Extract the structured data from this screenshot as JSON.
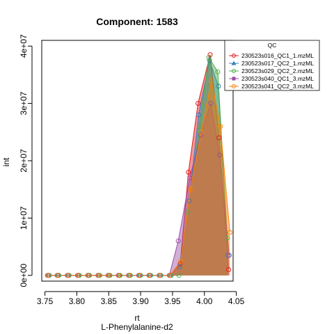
{
  "chart_data": {
    "type": "area",
    "title": "Component: 1583",
    "xlabel": "rt",
    "subtitle": "L-Phenylalanine-d2",
    "ylabel": "int",
    "xlim": [
      3.745,
      4.045
    ],
    "ylim": [
      -1000000,
      41000000
    ],
    "x_ticks": [
      3.75,
      3.8,
      3.85,
      3.9,
      3.95,
      4.0,
      4.05
    ],
    "x_tick_labels": [
      "3.75",
      "3.80",
      "3.85",
      "3.90",
      "3.95",
      "4.00",
      "4.05"
    ],
    "y_ticks": [
      0,
      10000000,
      20000000,
      30000000,
      40000000
    ],
    "y_tick_labels": [
      "0e+00",
      "1e+07",
      "2e+07",
      "3e+07",
      "4e+07"
    ],
    "legend": {
      "title": "QC",
      "placement": "top-right"
    },
    "series": [
      {
        "name": "230523s016_QC1_1.mzML",
        "color": "#E41A1C",
        "marker": "circle",
        "points": [
          [
            3.755,
            0
          ],
          [
            3.77,
            0
          ],
          [
            3.786,
            0
          ],
          [
            3.802,
            0
          ],
          [
            3.818,
            0
          ],
          [
            3.834,
            0
          ],
          [
            3.85,
            0
          ],
          [
            3.866,
            0
          ],
          [
            3.882,
            0
          ],
          [
            3.898,
            0
          ],
          [
            3.914,
            0
          ],
          [
            3.93,
            0
          ],
          [
            3.946,
            0
          ],
          [
            3.962,
            2000000
          ],
          [
            3.975,
            18000000
          ],
          [
            3.99,
            30000000
          ],
          [
            4.009,
            38500000
          ],
          [
            4.023,
            24000000
          ],
          [
            4.038,
            1000000
          ]
        ]
      },
      {
        "name": "230523s017_QC2_1.mzML",
        "color": "#377EB8",
        "marker": "triangle",
        "points": [
          [
            3.756,
            0
          ],
          [
            3.771,
            0
          ],
          [
            3.787,
            0
          ],
          [
            3.803,
            0
          ],
          [
            3.819,
            0
          ],
          [
            3.835,
            0
          ],
          [
            3.851,
            0
          ],
          [
            3.867,
            0
          ],
          [
            3.883,
            0
          ],
          [
            3.899,
            0
          ],
          [
            3.915,
            0
          ],
          [
            3.931,
            0
          ],
          [
            3.947,
            0
          ],
          [
            3.961,
            1500000
          ],
          [
            3.976,
            13000000
          ],
          [
            3.991,
            28000000
          ],
          [
            4.008,
            37500000
          ],
          [
            4.022,
            33000000
          ],
          [
            4.037,
            3500000
          ]
        ]
      },
      {
        "name": "230523s029_QC2_2.mzML",
        "color": "#4DAF4A",
        "marker": "circle",
        "points": [
          [
            3.757,
            0
          ],
          [
            3.772,
            0
          ],
          [
            3.788,
            0
          ],
          [
            3.804,
            0
          ],
          [
            3.82,
            0
          ],
          [
            3.836,
            0
          ],
          [
            3.852,
            0
          ],
          [
            3.868,
            0
          ],
          [
            3.884,
            0
          ],
          [
            3.9,
            0
          ],
          [
            3.916,
            0
          ],
          [
            3.932,
            0
          ],
          [
            3.948,
            0
          ],
          [
            3.96,
            0
          ],
          [
            3.974,
            11000000
          ],
          [
            3.992,
            26000000
          ],
          [
            4.007,
            38000000
          ],
          [
            4.021,
            35500000
          ],
          [
            4.036,
            6500000
          ]
        ]
      },
      {
        "name": "230523s040_QC1_3.mzML",
        "color": "#984EA3",
        "marker": "square",
        "points": [
          [
            3.754,
            0
          ],
          [
            3.769,
            0
          ],
          [
            3.785,
            0
          ],
          [
            3.801,
            0
          ],
          [
            3.817,
            0
          ],
          [
            3.833,
            0
          ],
          [
            3.849,
            0
          ],
          [
            3.865,
            0
          ],
          [
            3.881,
            0
          ],
          [
            3.897,
            0
          ],
          [
            3.913,
            0
          ],
          [
            3.929,
            0
          ],
          [
            3.945,
            0
          ],
          [
            3.959,
            6000000
          ],
          [
            3.977,
            17000000
          ],
          [
            3.994,
            24500000
          ],
          [
            4.01,
            30000000
          ],
          [
            4.024,
            21000000
          ],
          [
            4.039,
            3500000
          ]
        ]
      },
      {
        "name": "230523s041_QC2_3.mzML",
        "color": "#FF7F00",
        "marker": "circle",
        "points": [
          [
            3.755,
            0
          ],
          [
            3.77,
            0
          ],
          [
            3.786,
            0
          ],
          [
            3.802,
            0
          ],
          [
            3.818,
            0
          ],
          [
            3.834,
            0
          ],
          [
            3.85,
            0
          ],
          [
            3.866,
            0
          ],
          [
            3.882,
            0
          ],
          [
            3.898,
            0
          ],
          [
            3.914,
            0
          ],
          [
            3.93,
            0
          ],
          [
            3.946,
            0
          ],
          [
            3.963,
            2500000
          ],
          [
            3.978,
            15000000
          ],
          [
            3.995,
            25000000
          ],
          [
            4.011,
            34000000
          ],
          [
            4.025,
            26000000
          ],
          [
            4.04,
            7500000
          ]
        ]
      }
    ]
  }
}
